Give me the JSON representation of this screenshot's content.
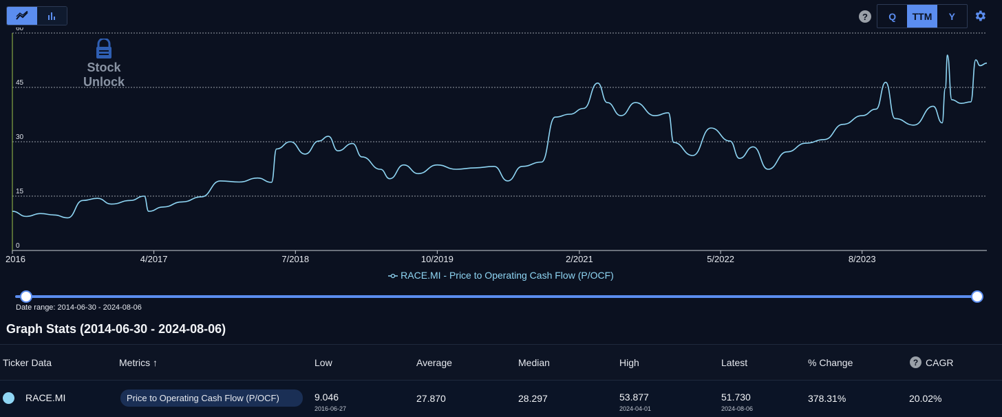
{
  "toolbar": {
    "view_modes": [
      {
        "icon": "line-chart-icon",
        "active": true
      },
      {
        "icon": "bar-chart-icon",
        "active": false
      }
    ],
    "help_icon": "?",
    "periods": [
      {
        "label": "Q",
        "active": false
      },
      {
        "label": "TTM",
        "active": true
      },
      {
        "label": "Y",
        "active": false
      }
    ],
    "settings_icon": "gear-icon"
  },
  "watermark": {
    "text": "Stock Unlock"
  },
  "chart_data": {
    "type": "line",
    "xlabel": "",
    "ylabel": "",
    "ylim": [
      0,
      60
    ],
    "yticks": [
      0,
      15,
      30,
      45,
      60
    ],
    "xticks": [
      "2016",
      "4/2017",
      "7/2018",
      "10/2019",
      "2/2021",
      "5/2022",
      "8/2023"
    ],
    "grid": true,
    "legend_position": "bottom-center",
    "series": [
      {
        "name": "RACE.MI - Price to Operating Cash Flow (P/OCF)",
        "color": "#8fd6f4",
        "points": [
          [
            "2016-01-01",
            10.8
          ],
          [
            "2016-02-15",
            9.4
          ],
          [
            "2016-04-01",
            10.2
          ],
          [
            "2016-05-15",
            9.8
          ],
          [
            "2016-06-27",
            9.0
          ],
          [
            "2016-08-15",
            13.8
          ],
          [
            "2016-10-01",
            14.4
          ],
          [
            "2016-11-15",
            12.8
          ],
          [
            "2017-01-15",
            13.8
          ],
          [
            "2017-03-01",
            15.0
          ],
          [
            "2017-03-15",
            10.8
          ],
          [
            "2017-05-01",
            12.0
          ],
          [
            "2017-07-01",
            13.4
          ],
          [
            "2017-09-01",
            14.8
          ],
          [
            "2017-11-01",
            19.2
          ],
          [
            "2018-01-01",
            18.9
          ],
          [
            "2018-03-01",
            20.0
          ],
          [
            "2018-04-15",
            18.8
          ],
          [
            "2018-05-01",
            28.0
          ],
          [
            "2018-06-15",
            30.0
          ],
          [
            "2018-08-01",
            26.6
          ],
          [
            "2018-09-15",
            30.2
          ],
          [
            "2018-10-15",
            31.5
          ],
          [
            "2018-11-15",
            27.5
          ],
          [
            "2019-01-01",
            29.5
          ],
          [
            "2019-02-01",
            25.8
          ],
          [
            "2019-04-01",
            22.4
          ],
          [
            "2019-05-01",
            19.8
          ],
          [
            "2019-06-15",
            23.6
          ],
          [
            "2019-08-01",
            21.2
          ],
          [
            "2019-10-01",
            23.6
          ],
          [
            "2019-12-01",
            22.4
          ],
          [
            "2020-02-01",
            22.8
          ],
          [
            "2020-04-01",
            23.2
          ],
          [
            "2020-05-15",
            19.2
          ],
          [
            "2020-07-01",
            23.2
          ],
          [
            "2020-09-01",
            24.4
          ],
          [
            "2020-10-15",
            36.8
          ],
          [
            "2020-12-01",
            37.6
          ],
          [
            "2021-01-15",
            39.2
          ],
          [
            "2021-03-01",
            46.2
          ],
          [
            "2021-04-01",
            40.8
          ],
          [
            "2021-05-15",
            37.2
          ],
          [
            "2021-07-01",
            40.8
          ],
          [
            "2021-09-01",
            37.2
          ],
          [
            "2021-10-15",
            38.0
          ],
          [
            "2021-11-01",
            29.8
          ],
          [
            "2022-01-01",
            26.2
          ],
          [
            "2022-03-01",
            33.8
          ],
          [
            "2022-05-01",
            30.2
          ],
          [
            "2022-06-01",
            25.4
          ],
          [
            "2022-07-15",
            28.6
          ],
          [
            "2022-09-01",
            22.4
          ],
          [
            "2022-11-01",
            27.2
          ],
          [
            "2023-01-01",
            29.6
          ],
          [
            "2023-03-01",
            30.6
          ],
          [
            "2023-05-01",
            34.8
          ],
          [
            "2023-07-01",
            37.2
          ],
          [
            "2023-08-15",
            39.0
          ],
          [
            "2023-09-15",
            46.4
          ],
          [
            "2023-10-15",
            36.4
          ],
          [
            "2023-12-15",
            34.6
          ],
          [
            "2024-02-15",
            39.8
          ],
          [
            "2024-03-15",
            35.2
          ],
          [
            "2024-03-25",
            44.8
          ],
          [
            "2024-04-01",
            53.9
          ],
          [
            "2024-04-15",
            41.6
          ],
          [
            "2024-05-15",
            40.6
          ],
          [
            "2024-06-15",
            41.0
          ],
          [
            "2024-07-01",
            52.6
          ],
          [
            "2024-07-15",
            51.0
          ],
          [
            "2024-08-06",
            51.7
          ]
        ]
      }
    ]
  },
  "legend": {
    "label": "RACE.MI - Price to Operating Cash Flow (P/OCF)"
  },
  "slider": {
    "range_label": "Date range: 2014-06-30 - 2024-08-06"
  },
  "stats": {
    "title": "Graph Stats (2014-06-30 - 2024-08-06)",
    "headers": {
      "ticker": "Ticker Data",
      "metrics": "Metrics ↑",
      "low": "Low",
      "average": "Average",
      "median": "Median",
      "high": "High",
      "latest": "Latest",
      "change": "% Change",
      "cagr": "CAGR"
    },
    "row": {
      "ticker": "RACE.MI",
      "metric": "Price to Operating Cash Flow (P/OCF)",
      "low": "9.046",
      "low_date": "2016-06-27",
      "average": "27.870",
      "median": "28.297",
      "high": "53.877",
      "high_date": "2024-04-01",
      "latest": "51.730",
      "latest_date": "2024-08-06",
      "change": "378.31%",
      "cagr": "20.02%"
    }
  }
}
